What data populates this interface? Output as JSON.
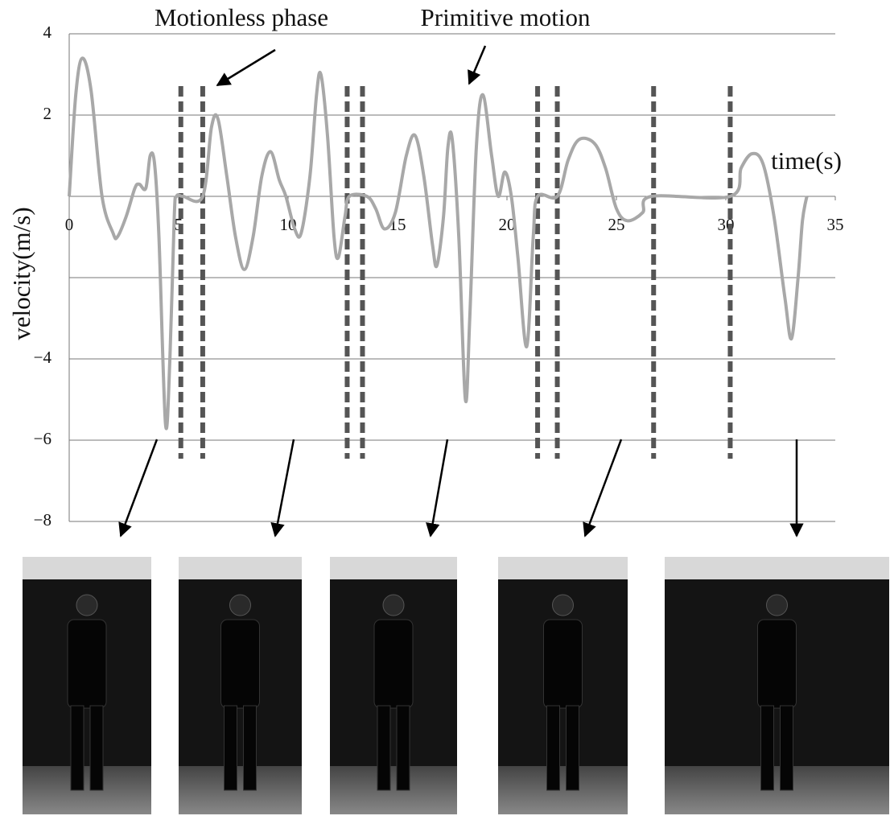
{
  "chart_data": {
    "type": "line",
    "annotations": [
      "Motionless phase",
      "Primitive motion"
    ],
    "x_label": "time(s)",
    "y_label": "velocity(m/s)",
    "x": [
      0,
      0.3,
      0.6,
      1.0,
      1.5,
      2.0,
      2.2,
      2.6,
      3.0,
      3.2,
      3.5,
      3.7,
      3.9,
      4.1,
      4.4,
      4.6,
      4.8,
      4.9,
      5.2,
      6.1,
      6.5,
      6.8,
      7.2,
      7.6,
      8.0,
      8.4,
      8.8,
      9.2,
      9.6,
      9.9,
      10.3,
      10.6,
      11.0,
      11.3,
      11.5,
      11.8,
      12.1,
      12.3,
      12.6,
      12.8,
      13.6,
      14.0,
      14.4,
      14.9,
      15.4,
      15.8,
      16.2,
      16.6,
      16.8,
      17.1,
      17.3,
      17.5,
      17.8,
      18.1,
      18.3,
      18.6,
      18.9,
      19.3,
      19.6,
      19.9,
      20.2,
      20.5,
      20.9,
      21.2,
      21.4,
      22.3,
      22.8,
      23.3,
      24.0,
      24.5,
      25.0,
      25.5,
      26.2,
      26.6,
      30.2,
      30.7,
      31.2,
      31.7,
      32.2,
      32.7,
      33.0,
      33.3,
      33.5,
      33.7
    ],
    "values": [
      0,
      2.5,
      3.4,
      2.6,
      0,
      -0.9,
      -1.0,
      -0.5,
      0.2,
      0.3,
      0.2,
      1.0,
      0.8,
      -1,
      -5.6,
      -4,
      -0.5,
      0,
      0,
      0,
      1.7,
      1.9,
      0.5,
      -1.0,
      -1.8,
      -1,
      0.5,
      1.1,
      0.4,
      0,
      -0.8,
      -0.9,
      0.5,
      2.5,
      3.0,
      1.5,
      -1,
      -1.5,
      -0.5,
      0,
      0,
      -0.3,
      -0.8,
      -0.4,
      1.0,
      1.5,
      0.5,
      -1.2,
      -1.7,
      -0.5,
      1.2,
      1.4,
      -1,
      -5.0,
      -3,
      1.2,
      2.5,
      1.0,
      0,
      0.6,
      0,
      -1.5,
      -3.7,
      -1,
      0,
      0,
      0.9,
      1.4,
      1.3,
      0.7,
      -0.3,
      -0.6,
      -0.4,
      0,
      0,
      0.7,
      1.05,
      0.8,
      -0.5,
      -2.5,
      -3.5,
      -2,
      -0.6,
      0
    ],
    "color": "#a8a8a8",
    "boundaries": [
      5.1,
      6.1,
      12.7,
      13.4,
      21.4,
      22.3,
      26.7,
      30.2
    ],
    "boundary_color": "#555555",
    "xlim": [
      0,
      35
    ],
    "xticks": [
      0,
      5,
      10,
      15,
      20,
      25,
      30,
      35
    ],
    "ylim": [
      -8,
      4
    ],
    "yticks": [
      4,
      2,
      {
        "value": 0,
        "label": null
      },
      {
        "value": -2,
        "label": null
      },
      {
        "value": -4,
        "label": "−4"
      },
      {
        "value": -6,
        "label": "−6"
      },
      {
        "value": -8,
        "label": "−8"
      }
    ],
    "grid": true
  }
}
